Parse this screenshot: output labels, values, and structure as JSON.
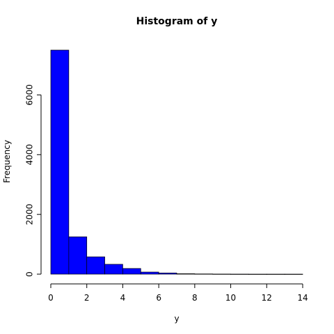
{
  "chart_data": {
    "type": "bar",
    "title": "Histogram of y",
    "xlabel": "y",
    "ylabel": "Frequency",
    "bar_color": "#0000ff",
    "bar_edge_color": "#000000",
    "bin_edges": [
      0,
      1,
      2,
      3,
      4,
      5,
      6,
      7,
      8,
      9,
      10,
      11,
      12,
      13,
      14
    ],
    "values": [
      7500,
      1250,
      580,
      330,
      190,
      70,
      40,
      15,
      8,
      4,
      2,
      1,
      1,
      1
    ],
    "xlim": [
      0,
      14
    ],
    "ylim": [
      0,
      7500
    ],
    "x_ticks": [
      "0",
      "2",
      "4",
      "6",
      "8",
      "10",
      "12",
      "14"
    ],
    "y_ticks": [
      "0",
      "2000",
      "4000",
      "6000"
    ],
    "grid": false
  }
}
